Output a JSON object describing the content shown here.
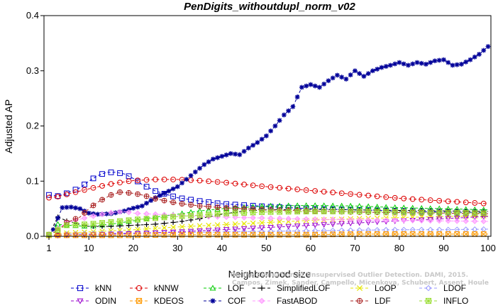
{
  "chart_data": {
    "type": "line",
    "title": "PenDigits_withoutdupl_norm_v02",
    "xlabel": "Neighborhood size",
    "ylabel": "Adjusted AP",
    "xlim": [
      1,
      100
    ],
    "ylim": [
      0,
      0.4
    ],
    "xticks": [
      1,
      10,
      20,
      30,
      40,
      50,
      60,
      70,
      80,
      90,
      100
    ],
    "yticks": [
      0,
      0.1,
      0.2,
      0.3,
      0.4
    ],
    "ytick_labels": [
      "0.0",
      "0.1",
      "0.2",
      "0.3",
      "0.4"
    ],
    "grid": false,
    "legend_position": "bottom",
    "watermark": [
      "Campos, Zimek, Sander, Campello, Micenkova, Schubert, Assent, Houle",
      "On the Evaluation of Unsupervised Outlier Detection. DAMI, 2015."
    ],
    "series": [
      {
        "name": "kNN",
        "color": "#0000cc",
        "marker": "square",
        "points": [
          [
            1,
            0.075
          ],
          [
            3,
            0.073
          ],
          [
            5,
            0.078
          ],
          [
            8,
            0.088
          ],
          [
            10,
            0.1
          ],
          [
            12,
            0.11
          ],
          [
            14,
            0.116
          ],
          [
            16,
            0.116
          ],
          [
            18,
            0.113
          ],
          [
            20,
            0.105
          ],
          [
            22,
            0.094
          ],
          [
            25,
            0.082
          ],
          [
            30,
            0.07
          ],
          [
            35,
            0.064
          ],
          [
            40,
            0.059
          ],
          [
            50,
            0.054
          ],
          [
            60,
            0.05
          ],
          [
            70,
            0.048
          ],
          [
            80,
            0.046
          ],
          [
            90,
            0.044
          ],
          [
            100,
            0.043
          ]
        ]
      },
      {
        "name": "kNNW",
        "color": "#dd0000",
        "marker": "circle",
        "points": [
          [
            1,
            0.07
          ],
          [
            3,
            0.072
          ],
          [
            5,
            0.076
          ],
          [
            10,
            0.086
          ],
          [
            15,
            0.095
          ],
          [
            20,
            0.101
          ],
          [
            25,
            0.103
          ],
          [
            30,
            0.103
          ],
          [
            35,
            0.101
          ],
          [
            40,
            0.098
          ],
          [
            50,
            0.09
          ],
          [
            60,
            0.083
          ],
          [
            70,
            0.076
          ],
          [
            80,
            0.069
          ],
          [
            90,
            0.064
          ],
          [
            100,
            0.059
          ]
        ]
      },
      {
        "name": "LOF",
        "color": "#00cc00",
        "marker": "triangle-up",
        "points": [
          [
            1,
            0.003
          ],
          [
            3,
            0.022
          ],
          [
            5,
            0.02
          ],
          [
            10,
            0.018
          ],
          [
            15,
            0.022
          ],
          [
            20,
            0.028
          ],
          [
            25,
            0.035
          ],
          [
            30,
            0.04
          ],
          [
            35,
            0.046
          ],
          [
            40,
            0.05
          ],
          [
            50,
            0.055
          ],
          [
            60,
            0.056
          ],
          [
            70,
            0.055
          ],
          [
            80,
            0.052
          ],
          [
            90,
            0.05
          ],
          [
            100,
            0.048
          ]
        ]
      },
      {
        "name": "SimplifiedLOF",
        "color": "#000000",
        "marker": "plus",
        "points": [
          [
            1,
            0.003
          ],
          [
            3,
            0.035
          ],
          [
            5,
            0.028
          ],
          [
            10,
            0.018
          ],
          [
            15,
            0.018
          ],
          [
            20,
            0.02
          ],
          [
            25,
            0.022
          ],
          [
            30,
            0.026
          ],
          [
            35,
            0.032
          ],
          [
            40,
            0.04
          ],
          [
            45,
            0.046
          ],
          [
            50,
            0.048
          ],
          [
            60,
            0.049
          ],
          [
            70,
            0.048
          ],
          [
            80,
            0.047
          ],
          [
            90,
            0.046
          ],
          [
            100,
            0.045
          ]
        ]
      },
      {
        "name": "LoOP",
        "color": "#e6e600",
        "marker": "x",
        "points": [
          [
            1,
            0.002
          ],
          [
            5,
            0.006
          ],
          [
            10,
            0.008
          ],
          [
            20,
            0.012
          ],
          [
            30,
            0.017
          ],
          [
            40,
            0.021
          ],
          [
            50,
            0.025
          ],
          [
            60,
            0.029
          ],
          [
            70,
            0.032
          ],
          [
            80,
            0.034
          ],
          [
            90,
            0.036
          ],
          [
            100,
            0.037
          ]
        ]
      },
      {
        "name": "LDOF",
        "color": "#9999ff",
        "marker": "diamond",
        "points": [
          [
            1,
            0.002
          ],
          [
            5,
            0.004
          ],
          [
            10,
            0.005
          ],
          [
            20,
            0.006
          ],
          [
            30,
            0.007
          ],
          [
            40,
            0.008
          ],
          [
            50,
            0.009
          ],
          [
            60,
            0.01
          ],
          [
            70,
            0.011
          ],
          [
            80,
            0.012
          ],
          [
            90,
            0.012
          ],
          [
            100,
            0.013
          ]
        ]
      },
      {
        "name": "ODIN",
        "color": "#9900cc",
        "marker": "triangle-down",
        "points": [
          [
            1,
            0.001
          ],
          [
            5,
            0.002
          ],
          [
            10,
            0.003
          ],
          [
            20,
            0.005
          ],
          [
            30,
            0.008
          ],
          [
            40,
            0.012
          ],
          [
            50,
            0.016
          ],
          [
            60,
            0.02
          ],
          [
            70,
            0.024
          ],
          [
            80,
            0.028
          ],
          [
            90,
            0.032
          ],
          [
            100,
            0.036
          ]
        ]
      },
      {
        "name": "KDEOS",
        "color": "#ff9900",
        "marker": "square-x",
        "points": [
          [
            1,
            0.002
          ],
          [
            10,
            0.002
          ],
          [
            20,
            0.002
          ],
          [
            30,
            0.003
          ],
          [
            40,
            0.003
          ],
          [
            50,
            0.003
          ],
          [
            60,
            0.003
          ],
          [
            70,
            0.004
          ],
          [
            80,
            0.004
          ],
          [
            90,
            0.004
          ],
          [
            100,
            0.004
          ]
        ]
      },
      {
        "name": "COF",
        "color": "#000099",
        "marker": "asterisk",
        "points": [
          [
            1,
            0.003
          ],
          [
            2,
            0.012
          ],
          [
            3,
            0.033
          ],
          [
            4,
            0.052
          ],
          [
            6,
            0.053
          ],
          [
            8,
            0.05
          ],
          [
            10,
            0.042
          ],
          [
            12,
            0.04
          ],
          [
            15,
            0.041
          ],
          [
            18,
            0.046
          ],
          [
            20,
            0.051
          ],
          [
            22,
            0.055
          ],
          [
            25,
            0.07
          ],
          [
            28,
            0.082
          ],
          [
            30,
            0.09
          ],
          [
            33,
            0.11
          ],
          [
            36,
            0.13
          ],
          [
            38,
            0.14
          ],
          [
            40,
            0.145
          ],
          [
            42,
            0.15
          ],
          [
            44,
            0.148
          ],
          [
            46,
            0.16
          ],
          [
            48,
            0.17
          ],
          [
            50,
            0.182
          ],
          [
            52,
            0.2
          ],
          [
            54,
            0.22
          ],
          [
            56,
            0.235
          ],
          [
            58,
            0.27
          ],
          [
            60,
            0.275
          ],
          [
            62,
            0.27
          ],
          [
            64,
            0.282
          ],
          [
            66,
            0.292
          ],
          [
            68,
            0.285
          ],
          [
            70,
            0.3
          ],
          [
            72,
            0.29
          ],
          [
            74,
            0.3
          ],
          [
            76,
            0.306
          ],
          [
            78,
            0.31
          ],
          [
            80,
            0.315
          ],
          [
            82,
            0.31
          ],
          [
            84,
            0.315
          ],
          [
            86,
            0.312
          ],
          [
            88,
            0.318
          ],
          [
            90,
            0.32
          ],
          [
            92,
            0.31
          ],
          [
            94,
            0.312
          ],
          [
            96,
            0.32
          ],
          [
            98,
            0.33
          ],
          [
            100,
            0.344
          ]
        ]
      },
      {
        "name": "FastABOD",
        "color": "#ff99ff",
        "marker": "diamond-filled",
        "points": [
          [
            1,
            0.003
          ],
          [
            5,
            0.025
          ],
          [
            10,
            0.035
          ],
          [
            15,
            0.043
          ],
          [
            18,
            0.045
          ],
          [
            20,
            0.042
          ],
          [
            25,
            0.04
          ],
          [
            30,
            0.038
          ],
          [
            40,
            0.035
          ],
          [
            50,
            0.033
          ],
          [
            60,
            0.031
          ],
          [
            70,
            0.03
          ],
          [
            80,
            0.029
          ],
          [
            90,
            0.028
          ],
          [
            100,
            0.027
          ]
        ]
      },
      {
        "name": "LDF",
        "color": "#aa2222",
        "marker": "circle-plus",
        "points": [
          [
            1,
            0.003
          ],
          [
            3,
            0.01
          ],
          [
            5,
            0.025
          ],
          [
            8,
            0.035
          ],
          [
            10,
            0.05
          ],
          [
            12,
            0.062
          ],
          [
            15,
            0.075
          ],
          [
            17,
            0.08
          ],
          [
            20,
            0.078
          ],
          [
            22,
            0.075
          ],
          [
            25,
            0.068
          ],
          [
            30,
            0.06
          ],
          [
            35,
            0.055
          ],
          [
            40,
            0.052
          ],
          [
            50,
            0.048
          ],
          [
            60,
            0.046
          ],
          [
            70,
            0.044
          ],
          [
            80,
            0.043
          ],
          [
            90,
            0.042
          ],
          [
            100,
            0.041
          ]
        ]
      },
      {
        "name": "INFLO",
        "color": "#99dd33",
        "marker": "square-star",
        "points": [
          [
            1,
            0.003
          ],
          [
            5,
            0.02
          ],
          [
            10,
            0.022
          ],
          [
            15,
            0.026
          ],
          [
            20,
            0.03
          ],
          [
            30,
            0.036
          ],
          [
            40,
            0.041
          ],
          [
            50,
            0.044
          ],
          [
            60,
            0.045
          ],
          [
            70,
            0.045
          ],
          [
            80,
            0.044
          ],
          [
            90,
            0.043
          ],
          [
            100,
            0.042
          ]
        ]
      }
    ],
    "legend_rows": [
      [
        "kNN",
        "kNNW",
        "LOF",
        "SimplifiedLOF",
        "LoOP",
        "LDOF"
      ],
      [
        "ODIN",
        "KDEOS",
        "COF",
        "FastABOD",
        "LDF",
        "INFLO"
      ]
    ]
  }
}
